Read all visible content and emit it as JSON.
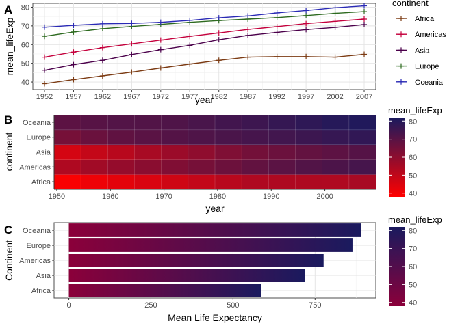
{
  "panels": [
    {
      "letter": "A"
    },
    {
      "letter": "B"
    },
    {
      "letter": "C"
    }
  ],
  "chart_data": [
    {
      "type": "line",
      "panel": "A",
      "xlabel": "year",
      "ylabel": "mean_lifeExp",
      "x": [
        1952,
        1957,
        1962,
        1967,
        1972,
        1977,
        1982,
        1987,
        1992,
        1997,
        2002,
        2007
      ],
      "xlim": [
        1950,
        2009
      ],
      "ylim": [
        36,
        82
      ],
      "yticks": [
        40,
        50,
        60,
        70,
        80
      ],
      "legend_title": "continent",
      "legend_position": "right",
      "grid": true,
      "series": [
        {
          "name": "Africa",
          "color": "#7b3a12",
          "values": [
            39.1,
            41.3,
            43.3,
            45.3,
            47.5,
            49.6,
            51.6,
            53.3,
            53.6,
            53.6,
            53.3,
            54.8
          ]
        },
        {
          "name": "Americas",
          "color": "#c4003c",
          "values": [
            53.3,
            56.0,
            58.4,
            60.4,
            62.4,
            64.4,
            66.2,
            68.1,
            69.6,
            71.2,
            72.4,
            73.6
          ]
        },
        {
          "name": "Asia",
          "color": "#4b004b",
          "values": [
            46.3,
            49.3,
            51.6,
            54.7,
            57.3,
            59.6,
            62.6,
            64.9,
            66.5,
            68.0,
            69.2,
            70.7
          ]
        },
        {
          "name": "Europe",
          "color": "#2d6a1f",
          "values": [
            64.4,
            66.7,
            68.5,
            69.7,
            70.8,
            71.9,
            72.8,
            73.6,
            74.4,
            75.5,
            76.7,
            77.6
          ]
        },
        {
          "name": "Oceania",
          "color": "#2a2ab5",
          "values": [
            69.3,
            70.3,
            71.1,
            71.3,
            71.9,
            72.9,
            74.3,
            75.3,
            76.9,
            78.2,
            79.7,
            80.7
          ]
        }
      ]
    },
    {
      "type": "heatmap",
      "panel": "B",
      "xlabel": "year",
      "ylabel": "continent",
      "x": [
        1952,
        1957,
        1962,
        1967,
        1972,
        1977,
        1982,
        1987,
        1992,
        1997,
        2002,
        2007
      ],
      "xticks": [
        1950,
        1960,
        1970,
        1980,
        1990,
        2000
      ],
      "xlim": [
        1949.5,
        2009.5
      ],
      "categories": [
        "Africa",
        "Americas",
        "Asia",
        "Europe",
        "Oceania"
      ],
      "legend_title": "mean_lifeExp",
      "colorbar": {
        "low_color": "#ff0000",
        "high_color": "#1a1a5e",
        "min": 38,
        "max": 82,
        "ticks": [
          40,
          50,
          60,
          70,
          80
        ]
      },
      "values": [
        [
          39.1,
          41.3,
          43.3,
          45.3,
          47.5,
          49.6,
          51.6,
          53.3,
          53.6,
          53.6,
          53.3,
          54.8
        ],
        [
          53.3,
          56.0,
          58.4,
          60.4,
          62.4,
          64.4,
          66.2,
          68.1,
          69.6,
          71.2,
          72.4,
          73.6
        ],
        [
          46.3,
          49.3,
          51.6,
          54.7,
          57.3,
          59.6,
          62.6,
          64.9,
          66.5,
          68.0,
          69.2,
          70.7
        ],
        [
          64.4,
          66.7,
          68.5,
          69.7,
          70.8,
          71.9,
          72.8,
          73.6,
          74.4,
          75.5,
          76.7,
          77.6
        ],
        [
          69.3,
          70.3,
          71.1,
          71.3,
          71.9,
          72.9,
          74.3,
          75.3,
          76.9,
          78.2,
          79.7,
          80.7
        ]
      ]
    },
    {
      "type": "bar",
      "orientation": "horizontal",
      "panel": "C",
      "xlabel": "Mean Life Expectancy",
      "ylabel": "Continent",
      "categories": [
        "Africa",
        "Asia",
        "Americas",
        "Europe",
        "Oceania"
      ],
      "values": [
        585,
        720,
        776,
        864,
        890
      ],
      "xlim": [
        -45,
        935
      ],
      "xticks": [
        0,
        250,
        500,
        750
      ],
      "legend_title": "mean_lifeExp",
      "colorbar": {
        "low_color": "#8b003a",
        "high_color": "#1a1a5e",
        "min": 38,
        "max": 82,
        "ticks": [
          40,
          50,
          60,
          70,
          80
        ]
      },
      "bar_gradient": {
        "start_color": "#8b003a",
        "end_color": "#1a1a5e"
      }
    }
  ]
}
